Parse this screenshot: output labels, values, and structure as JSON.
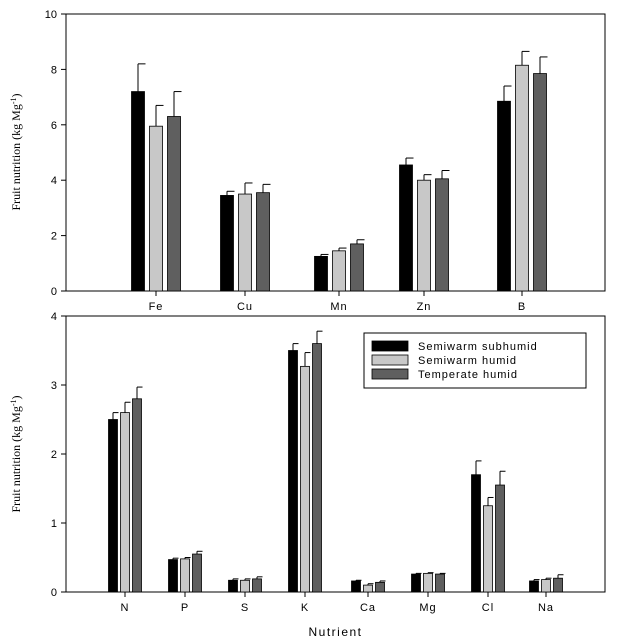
{
  "chart_data": [
    {
      "type": "bar",
      "ylabel": "Fruit nutrition (kg Mg",
      "ylabel_sup": "-1",
      "ylabel_close": ")",
      "xlabel": "",
      "ylim": [
        0,
        10
      ],
      "yticks": [
        0,
        2,
        4,
        6,
        8,
        10
      ],
      "categories": [
        "Fe",
        "Cu",
        "Mn",
        "Zn",
        "B"
      ],
      "series": [
        {
          "values": [
            7.2,
            3.45,
            1.25,
            4.55,
            6.85
          ],
          "errors": [
            1.0,
            0.15,
            0.07,
            0.25,
            0.55
          ]
        },
        {
          "values": [
            5.95,
            3.5,
            1.45,
            4.0,
            8.15
          ],
          "errors": [
            0.75,
            0.4,
            0.1,
            0.2,
            0.5
          ]
        },
        {
          "values": [
            6.3,
            3.55,
            1.7,
            4.05,
            7.85
          ],
          "errors": [
            0.9,
            0.3,
            0.15,
            0.3,
            0.6
          ]
        }
      ]
    },
    {
      "type": "bar",
      "ylabel": "Fruit nutrition (kg Mg",
      "ylabel_sup": "-1",
      "ylabel_close": ")",
      "xlabel": "Nutrient",
      "ylim": [
        0,
        4
      ],
      "yticks": [
        0,
        1,
        2,
        3,
        4
      ],
      "categories": [
        "N",
        "P",
        "S",
        "K",
        "Ca",
        "Mg",
        "Cl",
        "Na"
      ],
      "legend_position": "top-right",
      "series": [
        {
          "name": "Semiwarm subhumid",
          "values": [
            2.5,
            0.47,
            0.17,
            3.5,
            0.16,
            0.26,
            1.7,
            0.16
          ],
          "errors": [
            0.1,
            0.02,
            0.02,
            0.1,
            0.01,
            0.01,
            0.2,
            0.02
          ]
        },
        {
          "name": "Semiwarm humid",
          "values": [
            2.6,
            0.48,
            0.17,
            3.27,
            0.1,
            0.27,
            1.25,
            0.18
          ],
          "errors": [
            0.15,
            0.02,
            0.02,
            0.2,
            0.02,
            0.01,
            0.12,
            0.02
          ]
        },
        {
          "name": "Temperate humid",
          "values": [
            2.8,
            0.55,
            0.19,
            3.6,
            0.14,
            0.26,
            1.55,
            0.2
          ],
          "errors": [
            0.17,
            0.04,
            0.03,
            0.18,
            0.02,
            0.01,
            0.2,
            0.05
          ]
        }
      ]
    }
  ],
  "colors": {
    "series": [
      "#000000",
      "#c8c8c8",
      "#5f5f5f"
    ],
    "axis": "#000000"
  }
}
